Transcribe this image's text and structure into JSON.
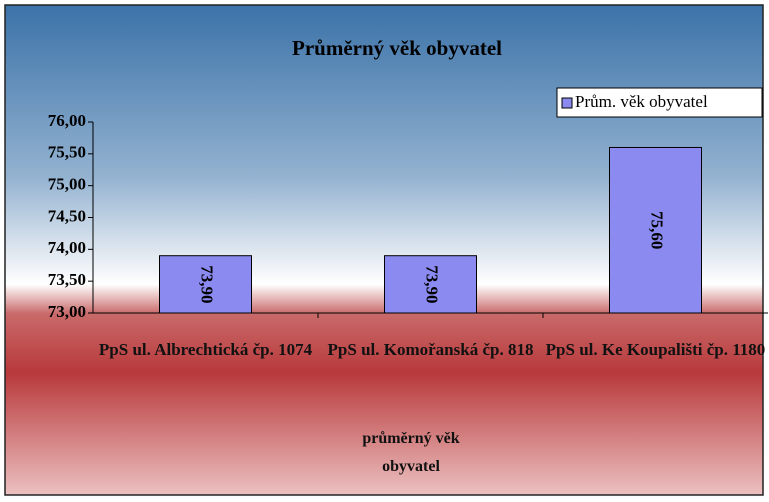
{
  "chart_data": {
    "type": "bar",
    "title": "Průměrný věk  obyvatel",
    "categories": [
      "PpS ul. Albrechtická čp. 1074",
      "PpS ul. Komořanská čp. 818",
      "PpS ul. Ke Koupališti čp. 1180"
    ],
    "series": [
      {
        "name": "Prům. věk obyvatel",
        "color": "#8a8af0",
        "values": [
          73.9,
          73.9,
          75.6
        ],
        "value_labels": [
          "73,90",
          "73,90",
          "75,60"
        ]
      }
    ],
    "x_label": "průměrný věk obyvatel",
    "ylim": [
      73,
      76
    ],
    "yticks": [
      {
        "value": 73,
        "label": "73,00"
      },
      {
        "value": 73.5,
        "label": "73,50"
      },
      {
        "value": 74,
        "label": "74,00"
      },
      {
        "value": 74.5,
        "label": "74,50"
      },
      {
        "value": 75,
        "label": "75,00"
      },
      {
        "value": 75.5,
        "label": "75,50"
      },
      {
        "value": 76,
        "label": "76,00"
      }
    ],
    "legend": "top-right"
  }
}
